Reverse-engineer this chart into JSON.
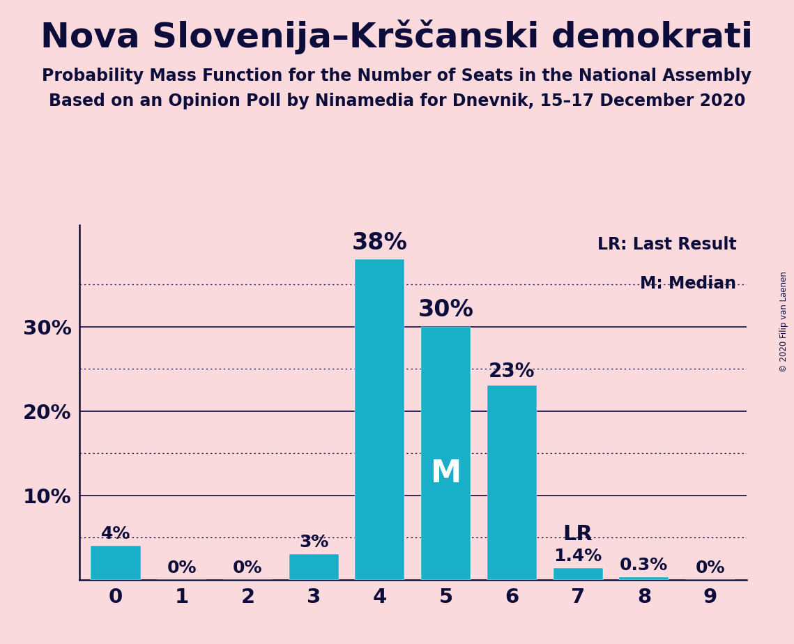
{
  "title": "Nova Slovenija–Krščanski demokrati",
  "subtitle1": "Probability Mass Function for the Number of Seats in the National Assembly",
  "subtitle2": "Based on an Opinion Poll by Ninamedia for Dnevnik, 15–17 December 2020",
  "copyright": "© 2020 Filip van Laenen",
  "categories": [
    0,
    1,
    2,
    3,
    4,
    5,
    6,
    7,
    8,
    9
  ],
  "values": [
    0.04,
    0.0,
    0.0,
    0.03,
    0.38,
    0.3,
    0.23,
    0.014,
    0.003,
    0.0
  ],
  "labels": [
    "4%",
    "0%",
    "0%",
    "3%",
    "38%",
    "30%",
    "23%",
    "1.4%",
    "0.3%",
    "0%"
  ],
  "bar_color": "#1aafc9",
  "bg_color": "#fadadd",
  "text_color": "#0d0d3c",
  "median_seat": 5,
  "lr_seat": 7,
  "ylim": [
    0,
    0.42
  ],
  "yticks": [
    0.0,
    0.1,
    0.2,
    0.3
  ],
  "ytick_labels": [
    "",
    "10%",
    "20%",
    "30%"
  ],
  "solid_lines": [
    0.1,
    0.2,
    0.3
  ],
  "dotted_lines": [
    0.05,
    0.15,
    0.25,
    0.35
  ],
  "legend_lr": "LR: Last Result",
  "legend_m": "M: Median"
}
